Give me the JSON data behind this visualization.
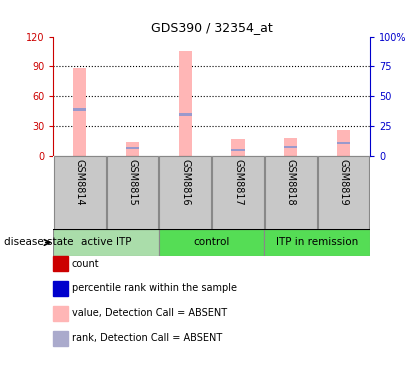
{
  "title": "GDS390 / 32354_at",
  "samples": [
    "GSM8814",
    "GSM8815",
    "GSM8816",
    "GSM8817",
    "GSM8818",
    "GSM8819"
  ],
  "pink_bar_heights": [
    88,
    14,
    105,
    17,
    18,
    26
  ],
  "blue_bar_heights": [
    3,
    2,
    3,
    2,
    2,
    2
  ],
  "blue_bar_bottoms": [
    45,
    7,
    40,
    5,
    8,
    12
  ],
  "ylim_left": [
    0,
    120
  ],
  "ylim_right": [
    0,
    100
  ],
  "yticks_left": [
    0,
    30,
    60,
    90,
    120
  ],
  "yticks_right": [
    0,
    25,
    50,
    75,
    100
  ],
  "ytick_labels_left": [
    "0",
    "30",
    "60",
    "90",
    "120"
  ],
  "ytick_labels_right": [
    "0",
    "25",
    "50",
    "75",
    "100%"
  ],
  "left_axis_color": "#CC0000",
  "right_axis_color": "#0000CC",
  "bar_width": 0.25,
  "pink_color": "#FFB6B6",
  "blue_color": "#9999CC",
  "red_color": "#CC0000",
  "legend_colors": [
    "#CC0000",
    "#0000CC",
    "#FFB6B6",
    "#AAAACC"
  ],
  "legend_labels": [
    "count",
    "percentile rank within the sample",
    "value, Detection Call = ABSENT",
    "rank, Detection Call = ABSENT"
  ],
  "disease_state_label": "disease state",
  "group_label_active": "active ITP",
  "group_label_control": "control",
  "group_label_remission": "ITP in remission",
  "group_color_light": "#AADDAA",
  "group_color_dark": "#55DD55"
}
